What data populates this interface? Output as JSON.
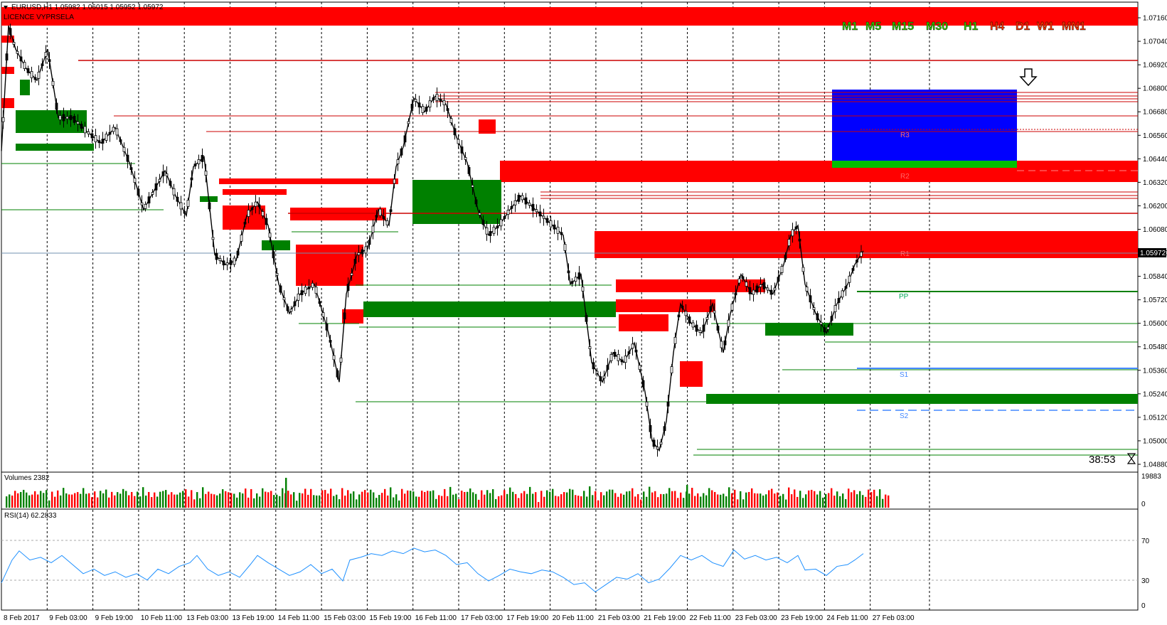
{
  "header": {
    "title": "EURUSD,H1  1.05982 1.06015 1.05952 1.05972",
    "licence": "LICENCE VYPRSELA"
  },
  "timeframes": [
    {
      "label": "M1",
      "color": "#33cc00"
    },
    {
      "label": "M5",
      "color": "#33cc00"
    },
    {
      "label": "M15",
      "color": "#33cc00"
    },
    {
      "label": "M30",
      "color": "#33cc00"
    },
    {
      "label": "H1",
      "color": "#33cc00"
    },
    {
      "label": "H4",
      "color": "#ff3300"
    },
    {
      "label": "D1",
      "color": "#ff3300"
    },
    {
      "label": "W1",
      "color": "#ff3300"
    },
    {
      "label": "MN1",
      "color": "#ff3300"
    }
  ],
  "price_axis": {
    "ticks": [
      "1.07160",
      "1.07040",
      "1.06920",
      "1.06800",
      "1.06680",
      "1.06560",
      "1.06440",
      "1.06320",
      "1.06200",
      "1.06080",
      "1.05960",
      "1.05840",
      "1.05720",
      "1.05600",
      "1.05480",
      "1.05360",
      "1.05240",
      "1.05120",
      "1.05000",
      "1.04880"
    ],
    "current_price": "1.05972",
    "range": [
      1.0484,
      1.0724
    ]
  },
  "time_axis": {
    "ticks": [
      "8 Feb 2017",
      "9 Feb 03:00",
      "9 Feb 19:00",
      "10 Feb 11:00",
      "13 Feb 03:00",
      "13 Feb 19:00",
      "14 Feb 11:00",
      "15 Feb 03:00",
      "15 Feb 19:00",
      "16 Feb 11:00",
      "17 Feb 03:00",
      "17 Feb 19:00",
      "20 Feb 11:00",
      "21 Feb 03:00",
      "21 Feb 19:00",
      "22 Feb 11:00",
      "23 Feb 03:00",
      "23 Feb 19:00",
      "24 Feb 11:00",
      "27 Feb 03:00"
    ]
  },
  "pivots": {
    "r3": "R3",
    "r2": "R2",
    "r1": "R1",
    "pp": "PP",
    "s1": "S1",
    "s2": "S2"
  },
  "countdown": "38:53",
  "volumes": {
    "label": "Volumes 2382",
    "max": "19883",
    "min": "0"
  },
  "rsi": {
    "label": "RSI(14) 62.2833",
    "levels": [
      "70",
      "30",
      "0"
    ]
  },
  "colors": {
    "supply_zone": "#ff0000",
    "demand_zone": "#008000",
    "projection_box": "#0000ff",
    "rsi_line": "#1e90ff",
    "volume_up": "#008000",
    "volume_down": "#ff0000"
  },
  "chart_data": {
    "type": "candlestick",
    "symbol": "EURUSD",
    "timeframe": "H1",
    "ohlc_last": {
      "open": 1.05982,
      "high": 1.06015,
      "low": 1.05952,
      "close": 1.05972
    },
    "y_range": [
      1.0484,
      1.0724
    ],
    "price_path": [
      [
        0,
        1.0648
      ],
      [
        10,
        1.0712
      ],
      [
        20,
        1.07
      ],
      [
        35,
        1.069
      ],
      [
        50,
        1.0684
      ],
      [
        65,
        1.07
      ],
      [
        80,
        1.0665
      ],
      [
        100,
        1.0665
      ],
      [
        120,
        1.0658
      ],
      [
        140,
        1.0652
      ],
      [
        160,
        1.066
      ],
      [
        180,
        1.0642
      ],
      [
        200,
        1.0618
      ],
      [
        215,
        1.0628
      ],
      [
        230,
        1.0638
      ],
      [
        245,
        1.0625
      ],
      [
        260,
        1.0615
      ],
      [
        270,
        1.064
      ],
      [
        285,
        1.0645
      ],
      [
        300,
        1.0595
      ],
      [
        315,
        1.059
      ],
      [
        330,
        1.0592
      ],
      [
        345,
        1.0615
      ],
      [
        360,
        1.0622
      ],
      [
        375,
        1.061
      ],
      [
        390,
        1.058
      ],
      [
        405,
        1.0565
      ],
      [
        420,
        1.0575
      ],
      [
        440,
        1.058
      ],
      [
        460,
        1.0555
      ],
      [
        475,
        1.053
      ],
      [
        485,
        1.0575
      ],
      [
        500,
        1.0595
      ],
      [
        515,
        1.0598
      ],
      [
        530,
        1.0618
      ],
      [
        545,
        1.061
      ],
      [
        555,
        1.064
      ],
      [
        565,
        1.065
      ],
      [
        580,
        1.0675
      ],
      [
        595,
        1.0668
      ],
      [
        610,
        1.0676
      ],
      [
        625,
        1.0672
      ],
      [
        640,
        1.0655
      ],
      [
        655,
        1.0642
      ],
      [
        670,
        1.0618
      ],
      [
        685,
        1.0605
      ],
      [
        700,
        1.061
      ],
      [
        715,
        1.0618
      ],
      [
        730,
        1.0625
      ],
      [
        745,
        1.062
      ],
      [
        760,
        1.0615
      ],
      [
        775,
        1.061
      ],
      [
        790,
        1.0605
      ],
      [
        800,
        1.058
      ],
      [
        815,
        1.0585
      ],
      [
        830,
        1.054
      ],
      [
        845,
        1.053
      ],
      [
        860,
        1.0545
      ],
      [
        875,
        1.054
      ],
      [
        890,
        1.055
      ],
      [
        905,
        1.0525
      ],
      [
        915,
        1.05
      ],
      [
        925,
        1.0495
      ],
      [
        935,
        1.051
      ],
      [
        945,
        1.0545
      ],
      [
        955,
        1.057
      ],
      [
        970,
        1.056
      ],
      [
        985,
        1.0555
      ],
      [
        1000,
        1.057
      ],
      [
        1015,
        1.0545
      ],
      [
        1025,
        1.0565
      ],
      [
        1040,
        1.0585
      ],
      [
        1055,
        1.0575
      ],
      [
        1070,
        1.058
      ],
      [
        1085,
        1.0575
      ],
      [
        1100,
        1.059
      ],
      [
        1110,
        1.0605
      ],
      [
        1120,
        1.061
      ],
      [
        1130,
        1.058
      ],
      [
        1145,
        1.0565
      ],
      [
        1160,
        1.0555
      ],
      [
        1175,
        1.057
      ],
      [
        1190,
        1.058
      ],
      [
        1200,
        1.059
      ],
      [
        1212,
        1.0597
      ]
    ],
    "rsi_path": [
      [
        0,
        30
      ],
      [
        15,
        55
      ],
      [
        25,
        65
      ],
      [
        40,
        55
      ],
      [
        55,
        58
      ],
      [
        70,
        52
      ],
      [
        85,
        60
      ],
      [
        100,
        50
      ],
      [
        115,
        40
      ],
      [
        130,
        45
      ],
      [
        145,
        38
      ],
      [
        160,
        42
      ],
      [
        175,
        36
      ],
      [
        190,
        40
      ],
      [
        205,
        33
      ],
      [
        220,
        45
      ],
      [
        235,
        40
      ],
      [
        250,
        48
      ],
      [
        265,
        52
      ],
      [
        275,
        60
      ],
      [
        290,
        45
      ],
      [
        305,
        38
      ],
      [
        320,
        42
      ],
      [
        335,
        36
      ],
      [
        350,
        50
      ],
      [
        360,
        60
      ],
      [
        375,
        52
      ],
      [
        390,
        45
      ],
      [
        405,
        38
      ],
      [
        420,
        42
      ],
      [
        435,
        50
      ],
      [
        450,
        40
      ],
      [
        465,
        45
      ],
      [
        480,
        32
      ],
      [
        490,
        55
      ],
      [
        505,
        58
      ],
      [
        520,
        62
      ],
      [
        535,
        60
      ],
      [
        550,
        65
      ],
      [
        565,
        62
      ],
      [
        580,
        68
      ],
      [
        595,
        64
      ],
      [
        610,
        66
      ],
      [
        625,
        60
      ],
      [
        640,
        50
      ],
      [
        655,
        52
      ],
      [
        670,
        40
      ],
      [
        685,
        32
      ],
      [
        700,
        38
      ],
      [
        715,
        45
      ],
      [
        730,
        42
      ],
      [
        745,
        40
      ],
      [
        760,
        44
      ],
      [
        775,
        42
      ],
      [
        790,
        36
      ],
      [
        805,
        28
      ],
      [
        820,
        30
      ],
      [
        835,
        20
      ],
      [
        850,
        28
      ],
      [
        865,
        36
      ],
      [
        880,
        34
      ],
      [
        895,
        40
      ],
      [
        910,
        30
      ],
      [
        925,
        34
      ],
      [
        940,
        46
      ],
      [
        955,
        60
      ],
      [
        970,
        55
      ],
      [
        985,
        60
      ],
      [
        1000,
        52
      ],
      [
        1015,
        48
      ],
      [
        1030,
        66
      ],
      [
        1045,
        56
      ],
      [
        1060,
        60
      ],
      [
        1075,
        55
      ],
      [
        1090,
        58
      ],
      [
        1105,
        52
      ],
      [
        1120,
        60
      ],
      [
        1130,
        44
      ],
      [
        1145,
        45
      ],
      [
        1160,
        38
      ],
      [
        1175,
        48
      ],
      [
        1190,
        50
      ],
      [
        1200,
        55
      ],
      [
        1212,
        62
      ]
    ]
  }
}
